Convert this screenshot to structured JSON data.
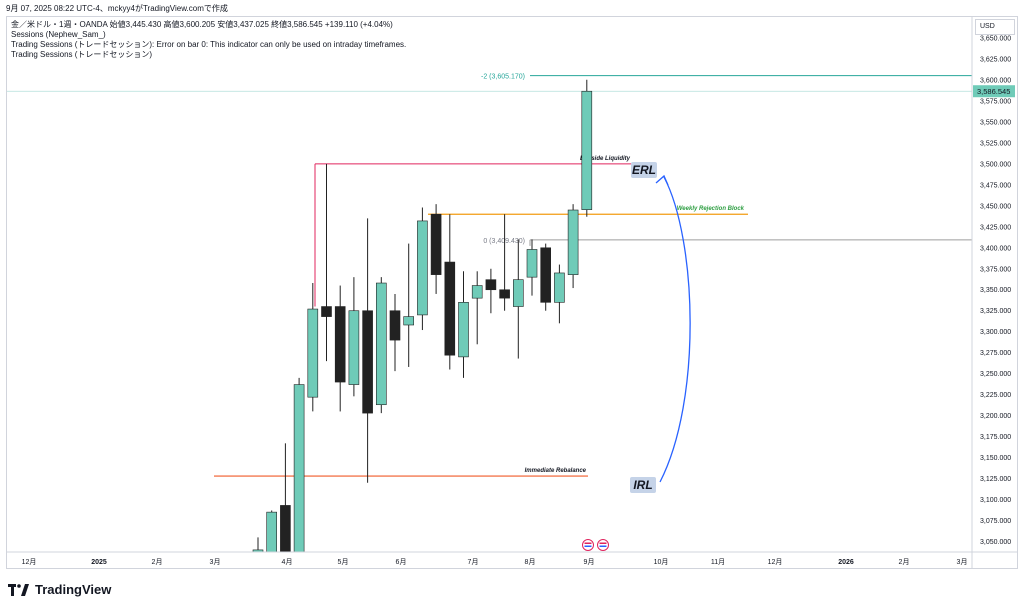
{
  "header": {
    "date_line": "9月 07, 2025 08:22 UTC-4、mckyy4がTradingView.comで作成"
  },
  "legend": {
    "symbol_line": "金／米ドル・1週・OANDA 始値3,445.430 高値3,600.205 安値3,437.025 終値3,586.545 +139.110 (+4.04%)",
    "line2": "Sessions (Nephew_Sam_)",
    "line3": "Trading Sessions (トレードセッション): Error on bar 0: This indicator can only be used on intraday timeframes.",
    "line4": "Trading Sessions (トレードセッション)"
  },
  "price_axis": {
    "currency": "USD",
    "current_price": "3,586.545"
  },
  "footer": {
    "brand": "TradingView"
  },
  "chart_data": {
    "type": "candlestick",
    "symbol": "XAU/USD",
    "timeframe": "1W",
    "ylim": [
      3037.5,
      3675
    ],
    "y_ticks": [
      3050,
      3075,
      3100,
      3125,
      3150,
      3175,
      3200,
      3225,
      3250,
      3275,
      3300,
      3325,
      3350,
      3375,
      3400,
      3425,
      3450,
      3475,
      3500,
      3525,
      3550,
      3575,
      3600,
      3625,
      3650
    ],
    "y_tick_labels": [
      "3,050.000",
      "3,075.000",
      "3,100.000",
      "3,125.000",
      "3,150.000",
      "3,175.000",
      "3,200.000",
      "3,225.000",
      "3,250.000",
      "3,275.000",
      "3,300.000",
      "3,325.000",
      "3,350.000",
      "3,375.000",
      "3,400.000",
      "3,425.000",
      "3,450.000",
      "3,475.000",
      "3,500.000",
      "3,525.000",
      "3,550.000",
      "3,575.000",
      "3,600.000",
      "3,625.000",
      "3,650.000"
    ],
    "x_labels": [
      "12月",
      "2025",
      "2月",
      "3月",
      "4月",
      "5月",
      "6月",
      "7月",
      "8月",
      "9月",
      "10月",
      "11月",
      "12月",
      "2026",
      "2月",
      "3月"
    ],
    "candles": [
      {
        "o": 3020,
        "h": 3055,
        "l": 3020,
        "c": 3040
      },
      {
        "o": 3030,
        "h": 3087,
        "l": 3030,
        "c": 3085
      },
      {
        "o": 3093,
        "h": 3167,
        "l": 3030,
        "c": 3035
      },
      {
        "o": 3035,
        "h": 3245,
        "l": 3025,
        "c": 3237
      },
      {
        "o": 3222,
        "h": 3358,
        "l": 3205,
        "c": 3327
      },
      {
        "o": 3330,
        "h": 3500,
        "l": 3265,
        "c": 3318
      },
      {
        "o": 3330,
        "h": 3355,
        "l": 3205,
        "c": 3240
      },
      {
        "o": 3237,
        "h": 3365,
        "l": 3223,
        "c": 3325
      },
      {
        "o": 3325,
        "h": 3435,
        "l": 3120,
        "c": 3203
      },
      {
        "o": 3213,
        "h": 3365,
        "l": 3203,
        "c": 3358
      },
      {
        "o": 3325,
        "h": 3345,
        "l": 3253,
        "c": 3290
      },
      {
        "o": 3308,
        "h": 3405,
        "l": 3258,
        "c": 3318
      },
      {
        "o": 3320,
        "h": 3448,
        "l": 3302,
        "c": 3432
      },
      {
        "o": 3440,
        "h": 3452,
        "l": 3345,
        "c": 3368
      },
      {
        "o": 3383,
        "h": 3440,
        "l": 3255,
        "c": 3272
      },
      {
        "o": 3270,
        "h": 3372,
        "l": 3245,
        "c": 3335
      },
      {
        "o": 3340,
        "h": 3372,
        "l": 3285,
        "c": 3355
      },
      {
        "o": 3362,
        "h": 3375,
        "l": 3322,
        "c": 3350
      },
      {
        "o": 3350,
        "h": 3440,
        "l": 3325,
        "c": 3340
      },
      {
        "o": 3330,
        "h": 3410,
        "l": 3268,
        "c": 3362
      },
      {
        "o": 3365,
        "h": 3410,
        "l": 3343,
        "c": 3398
      },
      {
        "o": 3400,
        "h": 3405,
        "l": 3325,
        "c": 3335
      },
      {
        "o": 3335,
        "h": 3380,
        "l": 3310,
        "c": 3370
      },
      {
        "o": 3368,
        "h": 3452,
        "l": 3352,
        "c": 3445
      },
      {
        "o": 3445.43,
        "h": 3600.205,
        "l": 3437.025,
        "c": 3586.545
      }
    ],
    "levels": [
      {
        "label": "-2 (3,605.170)",
        "value": 3605.17
      },
      {
        "label": "0 (3,409.430)",
        "value": 3409.43
      },
      {
        "label": "Buyside Liquidity",
        "value": 3500
      },
      {
        "label": "Weekly Rejection Block",
        "value": 3440
      },
      {
        "label": "Immediate Rebalance",
        "value": 3128
      }
    ],
    "annotations": [
      "ERL",
      "IRL"
    ]
  },
  "colors": {
    "up": "#6fcbb8",
    "down": "#222222",
    "fib": "#26a69a",
    "liquidity": "#e0245e",
    "rejection": "#f39c12",
    "rebalance": "#f05a28",
    "arrow": "#2962ff",
    "gray_line": "#9e9e9e",
    "label_bg": "#c5d3e8"
  }
}
